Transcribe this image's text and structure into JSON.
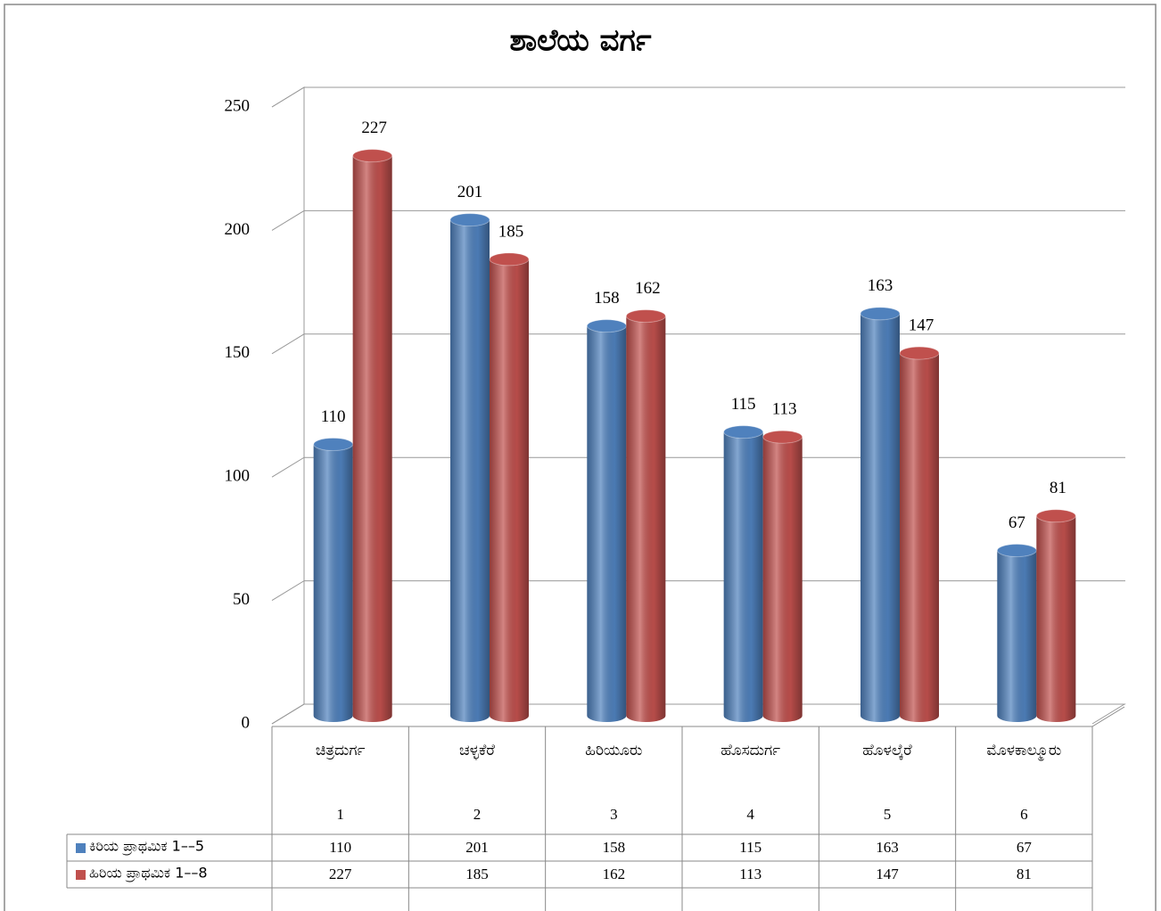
{
  "chart_data": {
    "type": "bar3d",
    "title": "ಶಾಲೆಯ ವರ್ಗ",
    "categories": [
      "ಚಿತ್ರದುರ್ಗ",
      "ಚಳ್ಳಕೆರೆ",
      "ಹಿರಿಯೂರು",
      "ಹೊಸದುರ್ಗ",
      "ಹೊಳಲ್ಕೆರೆ",
      "ಮೊಳಕಾಲ್ಮೂರು"
    ],
    "category_numbers": [
      1,
      2,
      3,
      4,
      5,
      6
    ],
    "series": [
      {
        "name": "ಕಿರಿಯ ಪ್ರಾಥಮಿಕ 1––5",
        "color": "#4f81bd",
        "values": [
          110,
          201,
          158,
          115,
          163,
          67
        ]
      },
      {
        "name": "ಹಿರಿಯ ಪ್ರಾಥಮಿಕ 1––8",
        "color": "#c0504d",
        "values": [
          227,
          185,
          162,
          113,
          147,
          81
        ]
      }
    ],
    "ylim": [
      0,
      250
    ],
    "yticks": [
      0,
      50,
      100,
      150,
      200,
      250
    ],
    "grid": true,
    "data_table": true
  }
}
